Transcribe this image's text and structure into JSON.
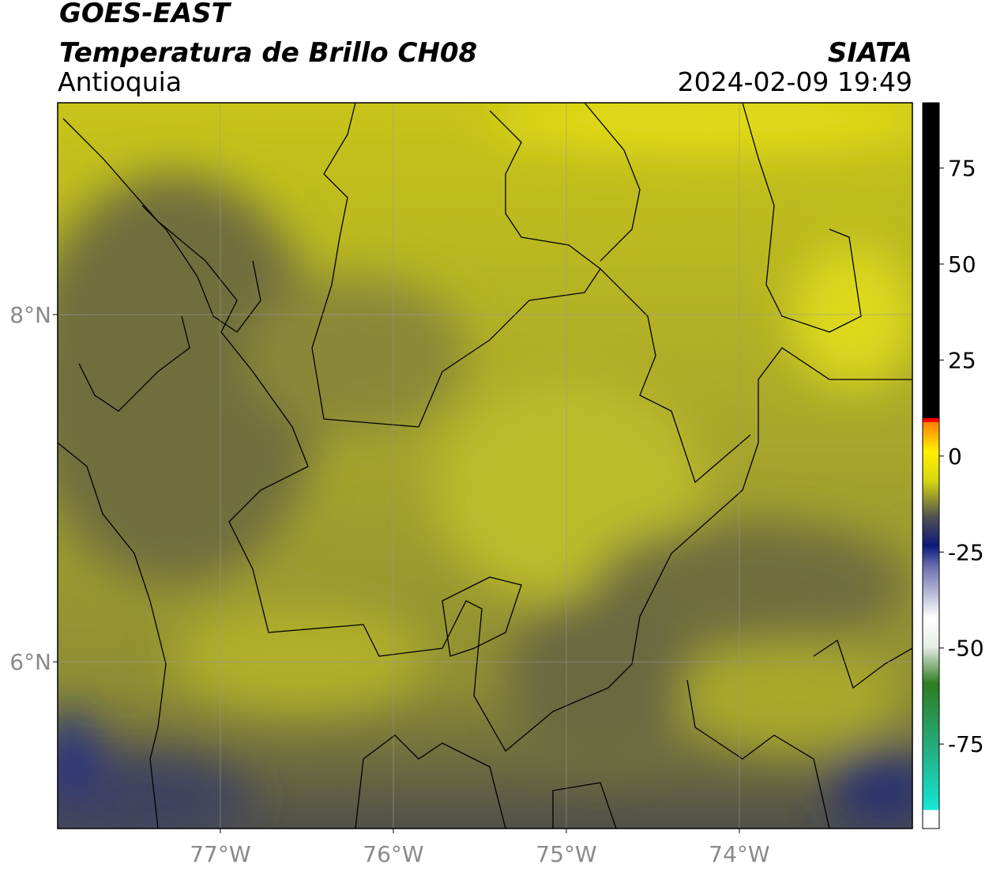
{
  "chart_data": {
    "type": "map",
    "title": "GOES-EAST",
    "subtitle": "Temperatura de Brillo CH08",
    "region": "Antioquia",
    "source": "SIATA",
    "datetime": "2024-02-09 19:49",
    "xlim": [
      -77.94,
      -73.0
    ],
    "ylim": [
      5.04,
      9.22
    ],
    "xticks": [
      {
        "value": -77,
        "label": "77°W"
      },
      {
        "value": -76,
        "label": "76°W"
      },
      {
        "value": -75,
        "label": "75°W"
      },
      {
        "value": -74,
        "label": "74°W"
      }
    ],
    "yticks": [
      {
        "value": 8,
        "label": "8°N"
      },
      {
        "value": 6,
        "label": "6°N"
      }
    ],
    "grid": true,
    "colorbar": {
      "lim": [
        -97,
        92
      ],
      "ticks": [
        75,
        50,
        25,
        0,
        -25,
        -50,
        -75
      ]
    }
  }
}
